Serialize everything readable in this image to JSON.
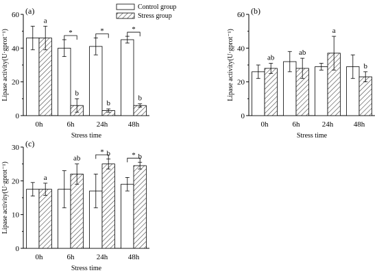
{
  "legend": {
    "control_label": "Control group",
    "stress_label": "Stress group"
  },
  "colors": {
    "control_fill": "#ffffff",
    "stroke": "#000000",
    "stress_hatch": "#444444"
  },
  "chart_data": [
    {
      "type": "bar",
      "panel_label": "(a)",
      "categories": [
        "0h",
        "6h",
        "24h",
        "48h"
      ],
      "xlabel": "Stress time",
      "ylabel": "Lipase activity(U·gprot⁻¹)",
      "ylim": [
        0,
        60
      ],
      "yticks": [
        0,
        20,
        40,
        60
      ],
      "series": [
        {
          "name": "Control group",
          "values": [
            46,
            40,
            41,
            45
          ],
          "errors": [
            7,
            5,
            5,
            2
          ]
        },
        {
          "name": "Stress group",
          "values": [
            46,
            6,
            3,
            6
          ],
          "errors": [
            7,
            4,
            1,
            1
          ]
        }
      ],
      "letters": [
        "a",
        "b",
        "b",
        "b"
      ],
      "significance": [
        "",
        "*",
        "*",
        "*"
      ],
      "legend_position": "top-right"
    },
    {
      "type": "bar",
      "panel_label": "(b)",
      "categories": [
        "0h",
        "6h",
        "24h",
        "48h"
      ],
      "xlabel": "Stress time",
      "ylabel": "Lipase activity(U·gprot⁻¹)",
      "ylim": [
        0,
        60
      ],
      "yticks": [
        0,
        20,
        40,
        60
      ],
      "series": [
        {
          "name": "Control group",
          "values": [
            26,
            32,
            29,
            29
          ],
          "errors": [
            4,
            6,
            2,
            7
          ]
        },
        {
          "name": "Stress group",
          "values": [
            28,
            28,
            37,
            23
          ],
          "errors": [
            3,
            6,
            10,
            3
          ]
        }
      ],
      "letters": [
        "ab",
        "ab",
        "a",
        "b"
      ],
      "significance": [
        "",
        "",
        "",
        ""
      ]
    },
    {
      "type": "bar",
      "panel_label": "(c)",
      "categories": [
        "0h",
        "6h",
        "24h",
        "48h"
      ],
      "xlabel": "Stress time",
      "ylabel": "Lipase activity(U·gprot⁻¹)",
      "ylim": [
        0,
        30
      ],
      "yticks": [
        0,
        10,
        20,
        30
      ],
      "series": [
        {
          "name": "Control group",
          "values": [
            17.5,
            17.5,
            17,
            19
          ],
          "errors": [
            2,
            5.5,
            5,
            2
          ]
        },
        {
          "name": "Stress group",
          "values": [
            17.5,
            22,
            25,
            24.5
          ],
          "errors": [
            1.8,
            3,
            1.5,
            1
          ]
        }
      ],
      "letters": [
        "a",
        "ab",
        "b",
        "b"
      ],
      "significance": [
        "",
        "",
        "*",
        "*"
      ]
    }
  ]
}
